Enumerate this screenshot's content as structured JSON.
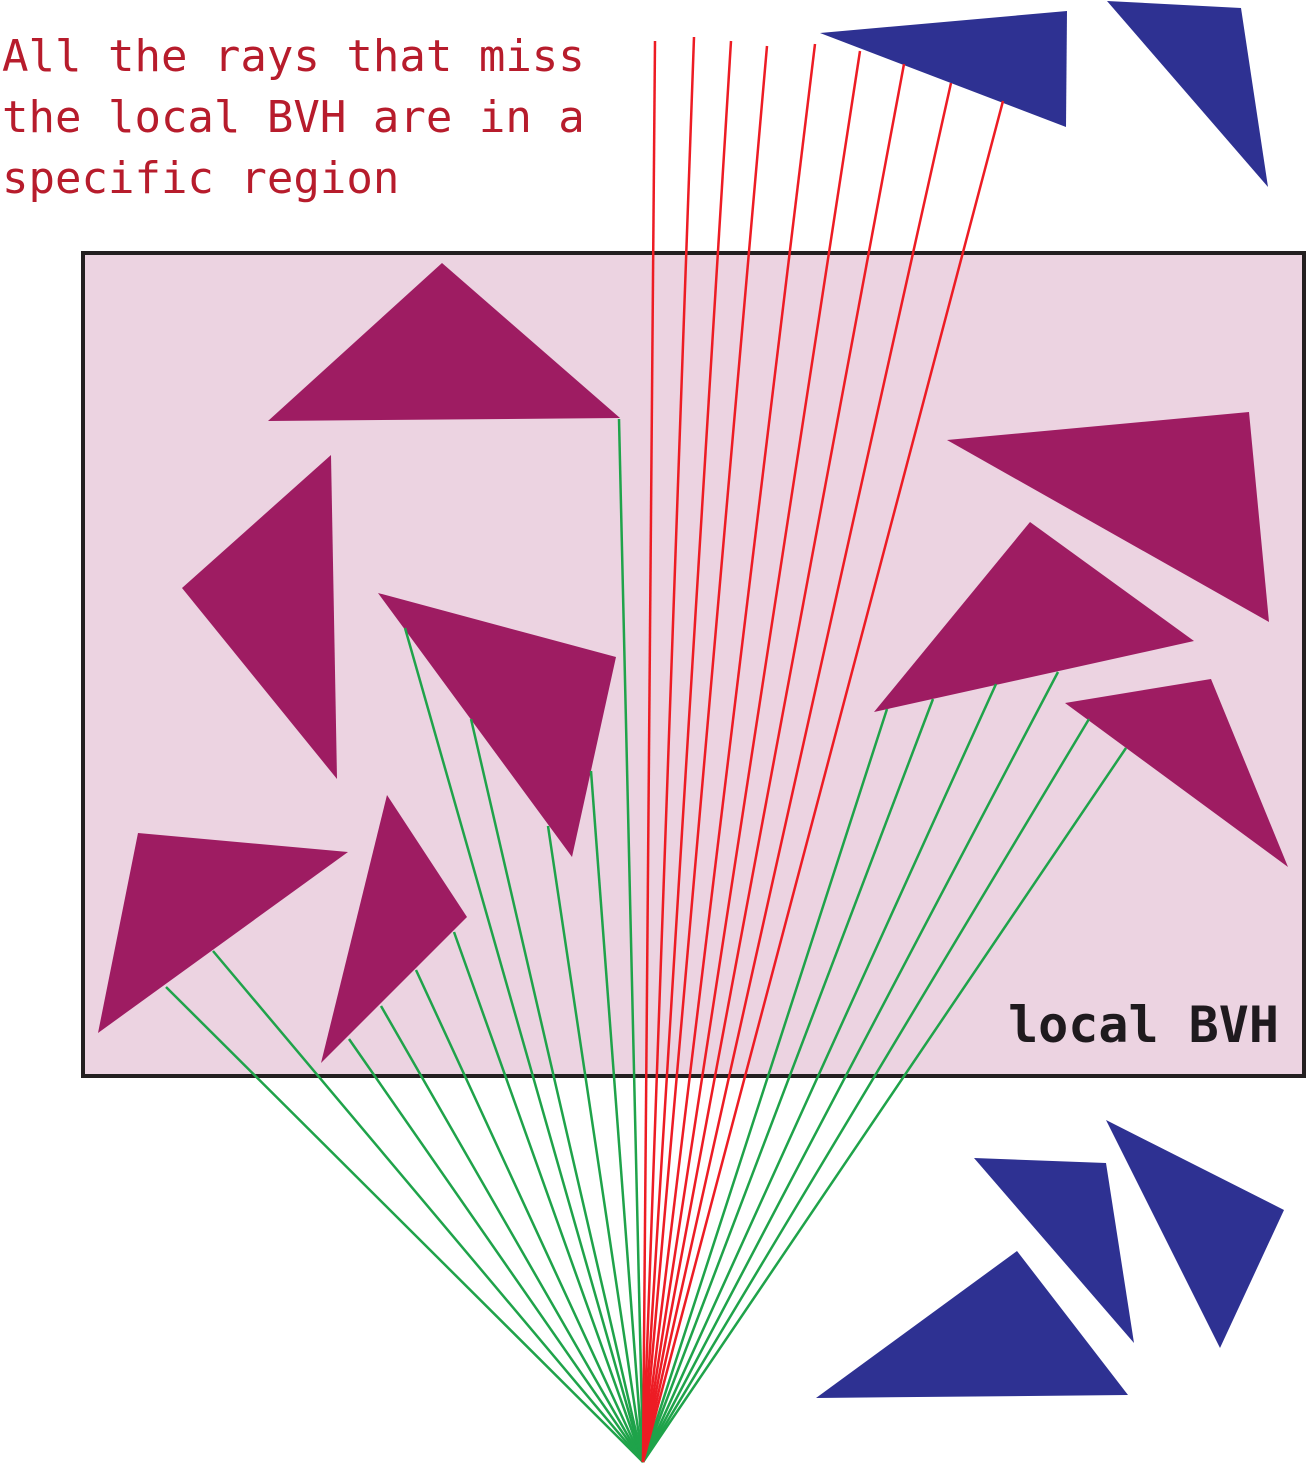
{
  "caption": {
    "lines": [
      "All the rays that miss",
      "the local BVH are in a",
      "specific region"
    ]
  },
  "bvh_box": {
    "label": "local BVH"
  },
  "colors": {
    "caption": "#b71c2c",
    "box_fill": "#ecd3e1",
    "box_stroke": "#231f20",
    "local_triangle": "#9e1c62",
    "outside_triangle": "#2e3192",
    "hit_ray": "#1fa34a",
    "miss_ray": "#ed1c24"
  },
  "counts": {
    "local_triangles": 8,
    "outside_triangles": 5,
    "hit_rays": 16,
    "miss_rays": 9
  }
}
